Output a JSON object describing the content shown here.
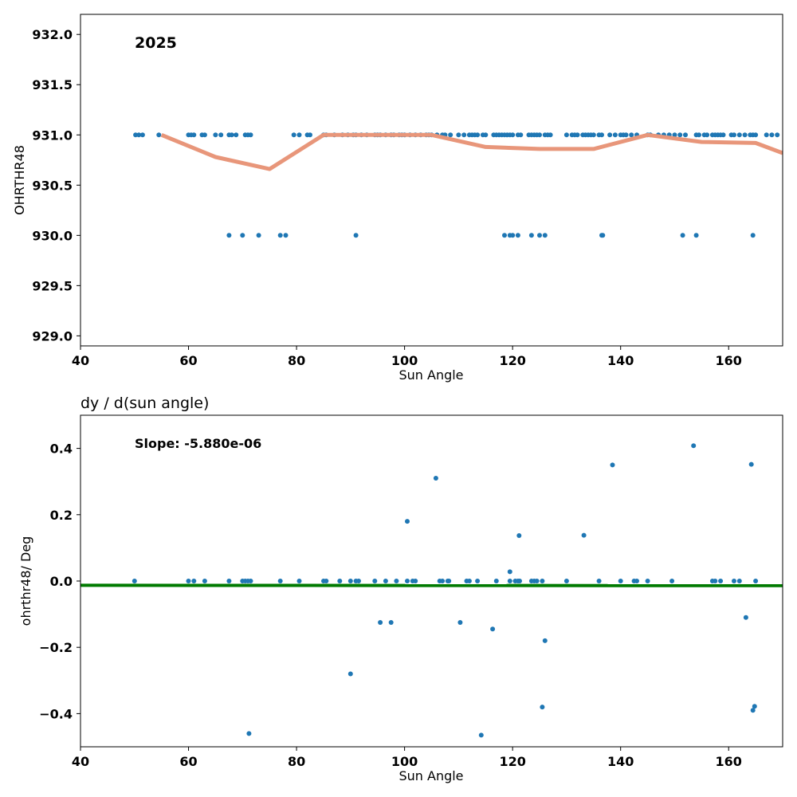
{
  "chart_data": [
    {
      "type": "scatter",
      "title": "",
      "annotation": "2025",
      "xlabel": "Sun Angle",
      "ylabel": "OHRTHR48",
      "xlim": [
        40,
        170
      ],
      "ylim": [
        928.9,
        932.2
      ],
      "xticks": [
        40,
        60,
        80,
        100,
        120,
        140,
        160
      ],
      "xtick_labels": [
        "40",
        "60",
        "80",
        "100",
        "120",
        "140",
        "160"
      ],
      "yticks": [
        929.0,
        929.5,
        930.0,
        930.5,
        931.0,
        931.5,
        932.0
      ],
      "ytick_labels": [
        "929.0",
        "929.5",
        "930.0",
        "930.5",
        "931.0",
        "931.5",
        "932.0"
      ],
      "grid": false,
      "colors": {
        "points": "#1f77b4",
        "trend": "#e8967a"
      },
      "series": [
        {
          "kind": "points",
          "x": [
            50.2,
            50.8,
            51.5,
            54.5,
            60,
            60.5,
            61,
            62.5,
            63,
            65,
            66,
            67.5,
            68,
            68.8,
            70.5,
            71,
            71.5,
            79.5,
            80.5,
            82,
            82.5,
            85,
            85.5,
            87,
            88.5,
            89.5,
            90.5,
            91,
            92,
            93,
            94.5,
            95,
            95.5,
            96.5,
            97.5,
            98,
            99,
            99.5,
            100,
            101,
            102,
            103,
            104,
            104.5,
            105,
            106,
            107,
            107.5,
            108.5,
            110,
            111,
            112,
            112.5,
            113,
            113.5,
            114.5,
            115,
            116.5,
            117,
            117.5,
            118,
            118.5,
            119,
            119.5,
            120,
            121,
            121.5,
            123,
            123.5,
            124,
            124.5,
            125,
            126,
            126.5,
            127,
            130,
            131,
            131.5,
            132,
            133,
            133.5,
            134,
            134.5,
            135,
            136,
            136.5,
            138,
            139,
            140,
            140.5,
            141,
            142,
            143,
            145,
            145.5,
            147,
            148,
            149,
            150,
            151,
            152,
            154,
            154.5,
            155.5,
            156,
            157,
            157.5,
            158,
            158.5,
            159,
            160.5,
            161,
            162,
            163,
            164,
            164.5,
            165,
            167,
            168,
            169,
            67.5,
            70,
            73,
            77,
            78,
            91,
            118.5,
            119.5,
            120,
            121,
            123.5,
            125,
            126,
            136.5,
            136.7,
            151.5,
            154,
            164.5
          ],
          "y": [
            931,
            931,
            931,
            931,
            931,
            931,
            931,
            931,
            931,
            931,
            931,
            931,
            931,
            931,
            931,
            931,
            931,
            931,
            931,
            931,
            931,
            931,
            931,
            931,
            931,
            931,
            931,
            931,
            931,
            931,
            931,
            931,
            931,
            931,
            931,
            931,
            931,
            931,
            931,
            931,
            931,
            931,
            931,
            931,
            931,
            931,
            931,
            931,
            931,
            931,
            931,
            931,
            931,
            931,
            931,
            931,
            931,
            931,
            931,
            931,
            931,
            931,
            931,
            931,
            931,
            931,
            931,
            931,
            931,
            931,
            931,
            931,
            931,
            931,
            931,
            931,
            931,
            931,
            931,
            931,
            931,
            931,
            931,
            931,
            931,
            931,
            931,
            931,
            931,
            931,
            931,
            931,
            931,
            931,
            931,
            931,
            931,
            931,
            931,
            931,
            931,
            931,
            931,
            931,
            931,
            931,
            931,
            931,
            931,
            931,
            931,
            931,
            931,
            931,
            931,
            931,
            931,
            931,
            931,
            931,
            930,
            930,
            930,
            930,
            930,
            930,
            930,
            930,
            930,
            930,
            930,
            930,
            930,
            930,
            930,
            930,
            930,
            930
          ]
        },
        {
          "kind": "line",
          "x": [
            55,
            65,
            75,
            85,
            95,
            105,
            115,
            125,
            135,
            145,
            155,
            165,
            170
          ],
          "y": [
            931.0,
            930.78,
            930.66,
            931.0,
            931.0,
            931.0,
            930.88,
            930.86,
            930.86,
            931.0,
            930.93,
            930.92,
            930.82
          ]
        }
      ]
    },
    {
      "type": "scatter",
      "title": "dy / d(sun angle)",
      "annotation": "Slope: -5.880e-06",
      "xlabel": "Sun Angle",
      "ylabel": "ohrthr48/ Deg",
      "xlim": [
        40,
        170
      ],
      "ylim": [
        -0.5,
        0.5
      ],
      "xticks": [
        40,
        60,
        80,
        100,
        120,
        140,
        160
      ],
      "xtick_labels": [
        "40",
        "60",
        "80",
        "100",
        "120",
        "140",
        "160"
      ],
      "yticks": [
        -0.4,
        -0.2,
        0.0,
        0.2,
        0.4
      ],
      "ytick_labels": [
        "−0.4",
        "−0.2",
        "0.0",
        "0.2",
        "0.4"
      ],
      "grid": false,
      "colors": {
        "points": "#1f77b4",
        "fit": "#007a00"
      },
      "series": [
        {
          "kind": "points",
          "x": [
            50,
            60,
            61,
            63,
            67.5,
            70,
            70.5,
            71,
            71.5,
            77,
            80.5,
            85,
            85.5,
            88,
            90,
            91,
            91.5,
            94.5,
            96.5,
            98.5,
            100.5,
            101.5,
            102,
            106.5,
            107,
            108,
            108.2,
            111.5,
            112,
            113.5,
            117,
            119.5,
            120.5,
            121,
            121.3,
            123.5,
            124,
            124.5,
            125.5,
            130,
            136,
            140,
            142.5,
            143,
            145,
            149.5,
            157,
            157.5,
            158.5,
            161,
            162,
            165,
            71.2,
            90,
            95.5,
            97.5,
            100.5,
            105.8,
            110.3,
            114.2,
            116.3,
            119.5,
            121.2,
            125.5,
            126,
            133.2,
            138.5,
            153.5,
            163.2,
            164.2,
            164.5,
            164.8
          ],
          "y": [
            0,
            0,
            0,
            0,
            0,
            0,
            0,
            0,
            0,
            0,
            0,
            0,
            0,
            0,
            0,
            0,
            0,
            0,
            0,
            0,
            0,
            0,
            0,
            0,
            0,
            0,
            0,
            0,
            0,
            0,
            0,
            0,
            0,
            0,
            0,
            0,
            0,
            0,
            0,
            0,
            0,
            0,
            0,
            0,
            0,
            0,
            0,
            0,
            0,
            0,
            0,
            0,
            -0.46,
            -0.28,
            -0.125,
            -0.125,
            0.18,
            0.31,
            -0.125,
            -0.465,
            -0.145,
            0.028,
            0.137,
            -0.38,
            -0.18,
            0.138,
            0.35,
            0.408,
            -0.11,
            0.352,
            -0.39,
            -0.378
          ]
        },
        {
          "kind": "line",
          "x": [
            40,
            170
          ],
          "y": [
            -0.013,
            -0.014
          ]
        }
      ]
    }
  ]
}
